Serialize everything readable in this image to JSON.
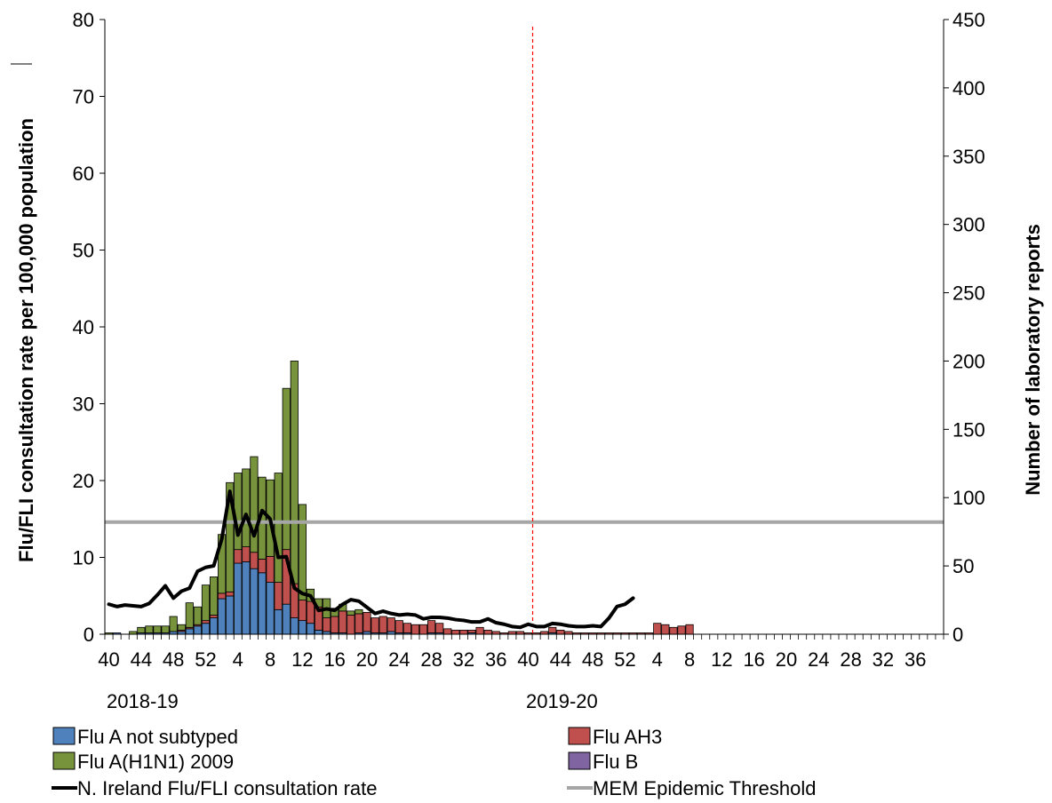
{
  "chart_data": {
    "type": "bar",
    "stacked": true,
    "y_label": "Flu/FLI consultation rate per 100,000 population",
    "y2_label": "Number of laboratory reports",
    "ylim": [
      0,
      80
    ],
    "y2lim": [
      0,
      450
    ],
    "y_ticks": [
      0,
      10,
      20,
      30,
      40,
      50,
      60,
      70,
      80
    ],
    "y2_ticks": [
      0,
      50,
      100,
      150,
      200,
      250,
      300,
      350,
      400,
      450
    ],
    "x_tick_labels": [
      "40",
      "44",
      "48",
      "52",
      "4",
      "8",
      "12",
      "16",
      "20",
      "24",
      "28",
      "32",
      "36",
      "40",
      "44",
      "48",
      "52",
      "4",
      "8",
      "12",
      "16",
      "20",
      "24",
      "28",
      "32",
      "36"
    ],
    "seasons": [
      "2018-19",
      "2019-20"
    ],
    "n_weeks": 104,
    "season2_start_week_index": 53,
    "series": [
      {
        "name": "Flu A not subtyped",
        "axis": "right",
        "color": "#4f81bd",
        "values": [
          0,
          1,
          0,
          0,
          1,
          1,
          1,
          1,
          2,
          2,
          4,
          6,
          8,
          12,
          26,
          28,
          52,
          53,
          48,
          45,
          38,
          18,
          22,
          12,
          10,
          8,
          3,
          2,
          1,
          1,
          0,
          1,
          2,
          1,
          1,
          2,
          1,
          1,
          0,
          0,
          1,
          1,
          0,
          0,
          0,
          1,
          0,
          0,
          0,
          0,
          0,
          0,
          0,
          0,
          0,
          1,
          0,
          0,
          0,
          0,
          0,
          0,
          0,
          0,
          0,
          0,
          0,
          0,
          0,
          0,
          0,
          0,
          0,
          0,
          0,
          0,
          0,
          0,
          0,
          0,
          0,
          0,
          0,
          0,
          0,
          0,
          0,
          0,
          0,
          0,
          0,
          0,
          0,
          0,
          0,
          0,
          0,
          0,
          0,
          0,
          0,
          0,
          0,
          0
        ]
      },
      {
        "name": "Flu AH3",
        "axis": "right",
        "color": "#c0504d",
        "values": [
          0,
          0,
          0,
          0,
          0,
          0,
          0,
          0,
          0,
          1,
          1,
          1,
          2,
          2,
          4,
          3,
          10,
          11,
          12,
          10,
          19,
          20,
          40,
          25,
          15,
          16,
          17,
          10,
          12,
          16,
          14,
          14,
          14,
          11,
          12,
          10,
          9,
          7,
          7,
          7,
          9,
          7,
          4,
          3,
          3,
          2,
          5,
          3,
          2,
          1,
          2,
          2,
          1,
          1,
          2,
          4,
          3,
          2,
          1,
          1,
          1,
          1,
          1,
          1,
          1,
          1,
          1,
          1,
          8,
          7,
          5,
          6,
          7,
          0,
          0,
          0,
          0,
          0,
          0,
          0,
          0,
          0,
          0,
          0,
          0,
          0,
          0,
          0,
          0,
          0,
          0,
          0,
          0,
          0,
          0,
          0,
          0,
          0,
          0,
          0,
          0,
          0,
          0,
          0
        ]
      },
      {
        "name": "Flu A(H1N1) 2009",
        "axis": "right",
        "color": "#77933c",
        "values": [
          1,
          0,
          0,
          2,
          4,
          5,
          5,
          5,
          11,
          4,
          18,
          13,
          26,
          28,
          43,
          80,
          56,
          57,
          70,
          60,
          56,
          80,
          118,
          163,
          70,
          9,
          6,
          14,
          6,
          5,
          3,
          3,
          0,
          0,
          0,
          0,
          0,
          0,
          0,
          0,
          0,
          0,
          0,
          0,
          0,
          0,
          0,
          0,
          0,
          0,
          0,
          0,
          0,
          0,
          0,
          0,
          0,
          0,
          0,
          0,
          0,
          0,
          0,
          0,
          0,
          0,
          0,
          0,
          0,
          0,
          0,
          0,
          0,
          0,
          0,
          0,
          0,
          0,
          0,
          0,
          0,
          0,
          0,
          0,
          0,
          0,
          0,
          0,
          0,
          0,
          0,
          0,
          0,
          0,
          0,
          0,
          0,
          0,
          0,
          0,
          0,
          0,
          0,
          0
        ]
      },
      {
        "name": "Flu B",
        "axis": "right",
        "color": "#8064a2",
        "values": [
          0,
          0,
          0,
          0,
          0,
          0,
          0,
          0,
          0,
          0,
          0,
          0,
          0,
          0,
          0,
          0,
          0,
          0,
          0,
          0,
          0,
          0,
          0,
          0,
          0,
          0,
          0,
          0,
          0,
          0,
          0,
          0,
          0,
          0,
          0,
          0,
          0,
          0,
          0,
          0,
          0,
          0,
          0,
          0,
          0,
          0,
          0,
          0,
          0,
          0,
          0,
          0,
          0,
          0,
          0,
          0,
          0,
          0,
          0,
          0,
          0,
          0,
          0,
          0,
          0,
          0,
          0,
          0,
          0,
          0,
          0,
          0,
          0,
          0,
          0,
          0,
          0,
          0,
          0,
          0,
          0,
          0,
          0,
          0,
          0,
          0,
          0,
          0,
          0,
          0,
          0,
          0,
          0,
          0,
          0,
          0,
          0,
          0,
          0,
          0,
          0,
          0,
          0,
          0
        ]
      }
    ],
    "lines": [
      {
        "name": "N. Ireland Flu/FLI consultation rate",
        "axis": "left",
        "color": "#000000",
        "values": [
          3.9,
          3.6,
          3.8,
          3.7,
          3.6,
          4.0,
          5.1,
          6.3,
          4.7,
          5.6,
          6.0,
          8.2,
          8.7,
          8.9,
          12.4,
          18.6,
          12.9,
          15.6,
          12.8,
          16.1,
          15.0,
          10.0,
          10.1,
          6.0,
          5.3,
          5.0,
          3.1,
          3.3,
          3.1,
          3.9,
          4.5,
          4.3,
          3.5,
          2.7,
          3.0,
          2.7,
          2.5,
          2.6,
          2.5,
          2.0,
          2.2,
          2.2,
          2.1,
          1.9,
          1.8,
          1.6,
          1.6,
          2.0,
          1.5,
          1.3,
          1.0,
          0.9,
          1.3,
          1.0,
          1.0,
          1.4,
          1.3,
          1.1,
          1.0,
          1.0,
          1.1,
          1.0,
          2.1,
          3.6,
          3.9,
          4.7
        ]
      },
      {
        "name": "MEM Epidemic Threshold",
        "axis": "left",
        "color": "#a6a6a6",
        "value": 14.6
      }
    ],
    "marker": {
      "type": "vertical-dashed-line",
      "color": "#ff0000",
      "week_index": 53
    },
    "legend_position": "bottom"
  },
  "legend": [
    {
      "label": "Flu A not subtyped",
      "kind": "box",
      "color": "#4f81bd"
    },
    {
      "label": "Flu AH3",
      "kind": "box",
      "color": "#c0504d"
    },
    {
      "label": "Flu A(H1N1) 2009",
      "kind": "box",
      "color": "#77933c"
    },
    {
      "label": "Flu B",
      "kind": "box",
      "color": "#8064a2"
    },
    {
      "label": "N. Ireland Flu/FLI consultation rate",
      "kind": "line",
      "color": "#000000"
    },
    {
      "label": "MEM Epidemic Threshold",
      "kind": "line",
      "color": "#a6a6a6"
    }
  ]
}
